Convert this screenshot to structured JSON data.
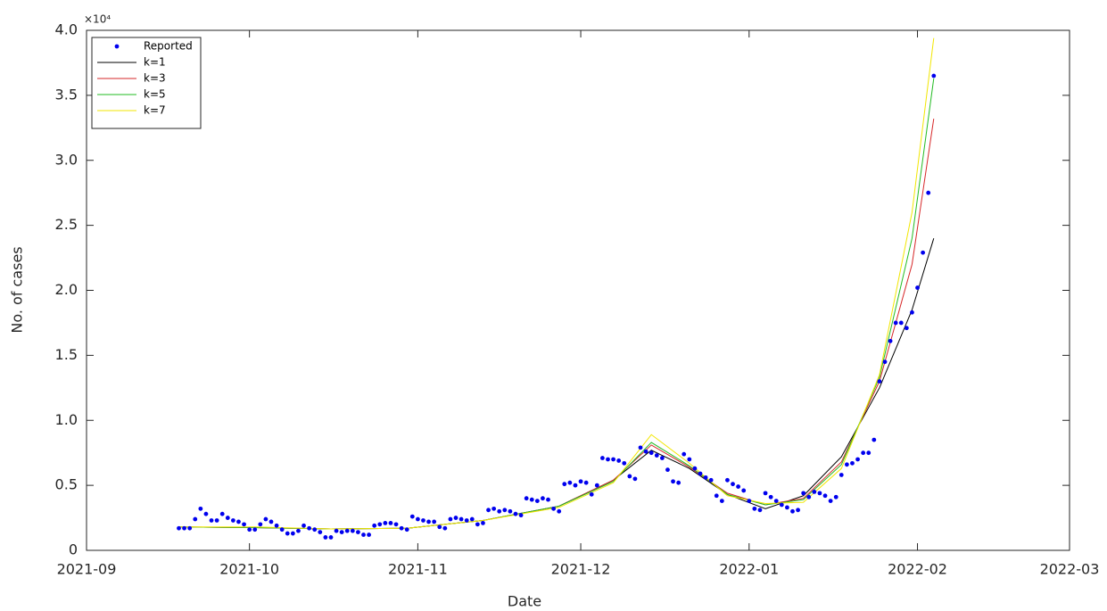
{
  "chart_data": {
    "type": "scatter-line",
    "xlabel": "Date",
    "ylabel": "No. of cases",
    "annotation": "×10⁴",
    "xlim": [
      0,
      181
    ],
    "xticks": [
      {
        "value": 0,
        "label": "2021-09"
      },
      {
        "value": 30,
        "label": "2021-10"
      },
      {
        "value": 61,
        "label": "2021-11"
      },
      {
        "value": 91,
        "label": "2021-12"
      },
      {
        "value": 122,
        "label": "2022-01"
      },
      {
        "value": 153,
        "label": "2022-02"
      },
      {
        "value": 181,
        "label": "2022-03"
      }
    ],
    "ylim": [
      0,
      40000
    ],
    "yticks": [
      0,
      {
        "value": 5000,
        "label": "0.5"
      },
      {
        "value": 10000,
        "label": "1.0"
      },
      {
        "value": 15000,
        "label": "1.5"
      },
      {
        "value": 20000,
        "label": "2.0"
      },
      {
        "value": 25000,
        "label": "2.5"
      },
      {
        "value": 30000,
        "label": "3.0"
      },
      {
        "value": 35000,
        "label": "3.5"
      },
      {
        "value": 40000,
        "label": "4.0"
      }
    ],
    "legend": "upper left",
    "series": [
      {
        "name": "Reported",
        "color": "#0000ee",
        "style": "points",
        "x": [
          17,
          18,
          19,
          20,
          21,
          22,
          23,
          24,
          25,
          26,
          27,
          28,
          29,
          30,
          31,
          32,
          33,
          34,
          35,
          36,
          37,
          38,
          39,
          40,
          41,
          42,
          43,
          44,
          45,
          46,
          47,
          48,
          49,
          50,
          51,
          52,
          53,
          54,
          55,
          56,
          57,
          58,
          59,
          60,
          61,
          62,
          63,
          64,
          65,
          66,
          67,
          68,
          69,
          70,
          71,
          72,
          73,
          74,
          75,
          76,
          77,
          78,
          79,
          80,
          81,
          82,
          83,
          84,
          85,
          86,
          87,
          88,
          89,
          90,
          91,
          92,
          93,
          94,
          95,
          96,
          97,
          98,
          99,
          100,
          101,
          102,
          103,
          104,
          105,
          106,
          107,
          108,
          109,
          110,
          111,
          112,
          113,
          114,
          115,
          116,
          117,
          118,
          119,
          120,
          121,
          122,
          123,
          124,
          125,
          126,
          127,
          128,
          129,
          130,
          131,
          132,
          133,
          134,
          135,
          136,
          137,
          138,
          139,
          140,
          141,
          142,
          143,
          144,
          145,
          146,
          147,
          148,
          149,
          150,
          151,
          152,
          153,
          154,
          155,
          156
        ],
        "values": [
          1700,
          1700,
          1700,
          2400,
          3200,
          2800,
          2300,
          2300,
          2800,
          2500,
          2300,
          2200,
          2000,
          1600,
          1600,
          2000,
          2400,
          2200,
          1900,
          1600,
          1300,
          1300,
          1500,
          1900,
          1700,
          1600,
          1400,
          1000,
          1000,
          1500,
          1400,
          1500,
          1500,
          1400,
          1200,
          1200,
          1900,
          2000,
          2100,
          2100,
          2000,
          1700,
          1600,
          2600,
          2400,
          2300,
          2200,
          2200,
          1800,
          1700,
          2400,
          2500,
          2400,
          2300,
          2400,
          2000,
          2100,
          3100,
          3200,
          3000,
          3100,
          3000,
          2800,
          2700,
          4000,
          3900,
          3800,
          4000,
          3900,
          3200,
          3000,
          5100,
          5200,
          5000,
          5300,
          5200,
          4300,
          5000,
          7100,
          7000,
          7000,
          6900,
          6700,
          5700,
          5500,
          7900,
          7600,
          7500,
          7300,
          7100,
          6200,
          5300,
          5200,
          7400,
          7000,
          6300,
          5900,
          5600,
          5400,
          4200,
          3800,
          5400,
          5100,
          4900,
          4600,
          3800,
          3200,
          3100,
          4400,
          4100,
          3800,
          3500,
          3300,
          3000,
          3100,
          4400,
          4100,
          4500,
          4400,
          4200,
          3800,
          4100,
          5800,
          6600,
          6700,
          7000,
          7500,
          7500,
          8500,
          13000,
          14500,
          16100,
          17500,
          17500,
          17100,
          18300,
          20200,
          22900,
          27500,
          36500
        ]
      },
      {
        "name": "k=1",
        "color": "#000000",
        "style": "line",
        "x": [
          17,
          31,
          45,
          59,
          73,
          87,
          97,
          104,
          111,
          118,
          125,
          132,
          139,
          146,
          152,
          156
        ],
        "values": [
          1800,
          1750,
          1650,
          1700,
          2300,
          3400,
          5400,
          7700,
          6300,
          4300,
          3200,
          4200,
          7200,
          12500,
          18500,
          24000
        ]
      },
      {
        "name": "k=3",
        "color": "#d62728",
        "style": "line",
        "x": [
          17,
          31,
          45,
          59,
          73,
          87,
          97,
          104,
          111,
          118,
          125,
          132,
          139,
          146,
          152,
          156
        ],
        "values": [
          1800,
          1750,
          1650,
          1700,
          2300,
          3400,
          5400,
          8100,
          6400,
          4400,
          3500,
          4000,
          6800,
          13000,
          22000,
          33200
        ]
      },
      {
        "name": "k=5",
        "color": "#22bb22",
        "style": "line",
        "x": [
          17,
          31,
          45,
          59,
          73,
          87,
          97,
          104,
          111,
          118,
          125,
          132,
          139,
          146,
          152,
          156
        ],
        "values": [
          1800,
          1750,
          1650,
          1700,
          2300,
          3400,
          5300,
          8300,
          6500,
          4300,
          3500,
          3900,
          6600,
          13300,
          24000,
          36300
        ]
      },
      {
        "name": "k=7",
        "color": "#f2e600",
        "style": "line",
        "x": [
          17,
          31,
          45,
          59,
          73,
          87,
          97,
          104,
          111,
          118,
          125,
          132,
          139,
          146,
          152,
          156
        ],
        "values": [
          1800,
          1800,
          1650,
          1700,
          2300,
          3300,
          5200,
          8900,
          6700,
          4200,
          3600,
          3700,
          6300,
          13500,
          26000,
          39400
        ]
      }
    ]
  }
}
